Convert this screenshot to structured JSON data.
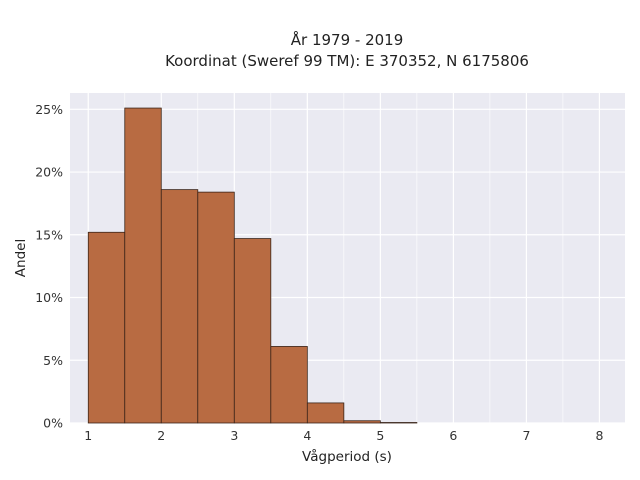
{
  "chart_data": {
    "type": "bar",
    "title": "År 1979 - 2019",
    "subtitle": "Koordinat (Sweref 99 TM): E 370352, N 6175806",
    "xlabel": "Vågperiod (s)",
    "ylabel": "Andel",
    "xlim": [
      0.75,
      8.35
    ],
    "ylim": [
      0,
      0.263
    ],
    "x_ticks": [
      1,
      2,
      3,
      4,
      5,
      6,
      7,
      8
    ],
    "x_tick_labels": [
      "1",
      "2",
      "3",
      "4",
      "5",
      "6",
      "7",
      "8"
    ],
    "y_ticks": [
      0,
      0.05,
      0.1,
      0.15,
      0.2,
      0.25
    ],
    "y_tick_labels": [
      "0%",
      "5%",
      "10%",
      "15%",
      "20%",
      "25%"
    ],
    "bins": [
      {
        "x0": 1.0,
        "x1": 1.5,
        "value": 0.152
      },
      {
        "x0": 1.5,
        "x1": 2.0,
        "value": 0.251
      },
      {
        "x0": 2.0,
        "x1": 2.5,
        "value": 0.186
      },
      {
        "x0": 2.5,
        "x1": 3.0,
        "value": 0.184
      },
      {
        "x0": 3.0,
        "x1": 3.5,
        "value": 0.147
      },
      {
        "x0": 3.5,
        "x1": 4.0,
        "value": 0.061
      },
      {
        "x0": 4.0,
        "x1": 4.5,
        "value": 0.016
      },
      {
        "x0": 4.5,
        "x1": 5.0,
        "value": 0.0018
      },
      {
        "x0": 5.0,
        "x1": 5.5,
        "value": 0.0004
      }
    ],
    "grid": true,
    "colors": {
      "bar_fill": "#b86b42",
      "bar_edge": "#3a2419",
      "plot_background": "#eaeaf2",
      "grid": "#ffffff"
    }
  }
}
